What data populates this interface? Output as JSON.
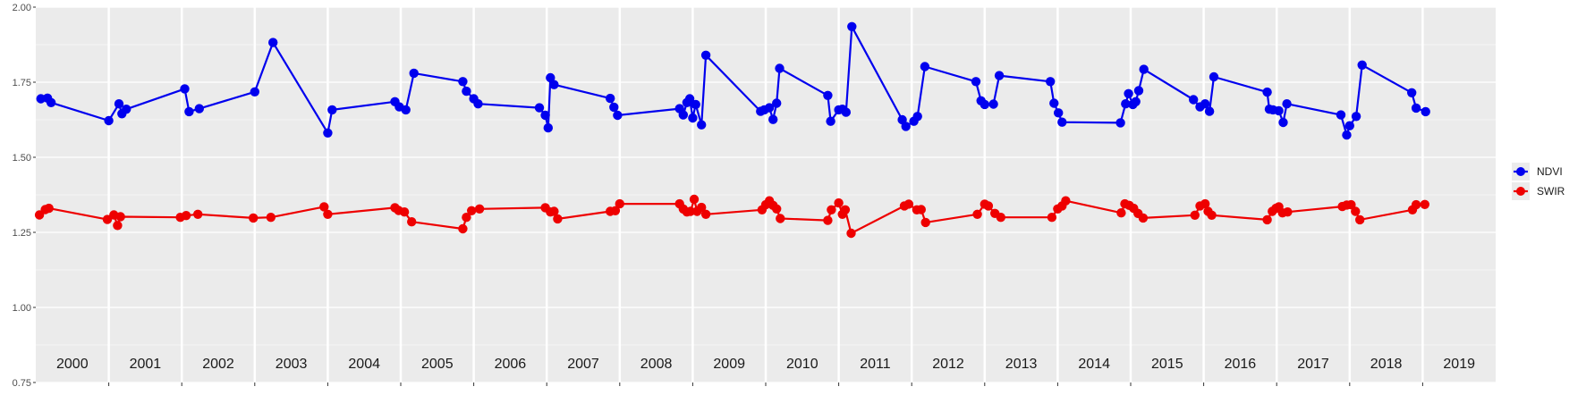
{
  "chart_data": {
    "type": "line",
    "title": "",
    "xlabel": "",
    "ylabel": "",
    "xlim": [
      2000.0,
      2020.0
    ],
    "ylim": [
      0.75,
      2.0
    ],
    "y_ticks": [
      "0.75",
      "1.00",
      "1.25",
      "1.50",
      "1.75",
      "2.00"
    ],
    "y_tick_values": [
      0.75,
      1.0,
      1.25,
      1.5,
      1.75,
      2.0
    ],
    "year_labels": [
      "2000",
      "2001",
      "2002",
      "2003",
      "2004",
      "2005",
      "2006",
      "2007",
      "2008",
      "2009",
      "2010",
      "2011",
      "2012",
      "2013",
      "2014",
      "2015",
      "2016",
      "2017",
      "2018",
      "2019"
    ],
    "grid": true,
    "legend_position": "right",
    "series": [
      {
        "name": "NDVI",
        "color": "#0000ee",
        "points": [
          [
            2000.07,
            1.695
          ],
          [
            2000.16,
            1.697
          ],
          [
            2000.21,
            1.682
          ],
          [
            2001.0,
            1.622
          ],
          [
            2001.14,
            1.678
          ],
          [
            2001.18,
            1.645
          ],
          [
            2001.24,
            1.66
          ],
          [
            2002.04,
            1.728
          ],
          [
            2002.1,
            1.652
          ],
          [
            2002.24,
            1.662
          ],
          [
            2003.0,
            1.718
          ],
          [
            2003.25,
            1.882
          ],
          [
            2004.0,
            1.581
          ],
          [
            2004.06,
            1.658
          ],
          [
            2004.92,
            1.685
          ],
          [
            2004.98,
            1.668
          ],
          [
            2005.07,
            1.658
          ],
          [
            2005.18,
            1.78
          ],
          [
            2005.85,
            1.752
          ],
          [
            2005.9,
            1.72
          ],
          [
            2006.0,
            1.695
          ],
          [
            2006.06,
            1.678
          ],
          [
            2006.9,
            1.665
          ],
          [
            2006.98,
            1.64
          ],
          [
            2007.02,
            1.598
          ],
          [
            2007.05,
            1.765
          ],
          [
            2007.1,
            1.742
          ],
          [
            2007.87,
            1.696
          ],
          [
            2007.92,
            1.667
          ],
          [
            2007.97,
            1.64
          ],
          [
            2008.82,
            1.662
          ],
          [
            2008.87,
            1.641
          ],
          [
            2008.92,
            1.682
          ],
          [
            2008.96,
            1.695
          ],
          [
            2009.0,
            1.631
          ],
          [
            2009.04,
            1.676
          ],
          [
            2009.12,
            1.608
          ],
          [
            2009.18,
            1.84
          ],
          [
            2009.93,
            1.653
          ],
          [
            2009.98,
            1.658
          ],
          [
            2010.05,
            1.665
          ],
          [
            2010.1,
            1.626
          ],
          [
            2010.15,
            1.68
          ],
          [
            2010.19,
            1.796
          ],
          [
            2010.85,
            1.706
          ],
          [
            2010.89,
            1.62
          ],
          [
            2011.0,
            1.658
          ],
          [
            2011.05,
            1.66
          ],
          [
            2011.1,
            1.65
          ],
          [
            2011.18,
            1.935
          ],
          [
            2011.87,
            1.625
          ],
          [
            2011.92,
            1.603
          ],
          [
            2012.03,
            1.62
          ],
          [
            2012.08,
            1.636
          ],
          [
            2012.18,
            1.802
          ],
          [
            2012.88,
            1.752
          ],
          [
            2012.95,
            1.688
          ],
          [
            2013.0,
            1.676
          ],
          [
            2013.12,
            1.677
          ],
          [
            2013.2,
            1.772
          ],
          [
            2013.9,
            1.752
          ],
          [
            2013.95,
            1.68
          ],
          [
            2014.01,
            1.648
          ],
          [
            2014.06,
            1.617
          ],
          [
            2014.86,
            1.615
          ],
          [
            2014.93,
            1.678
          ],
          [
            2014.97,
            1.712
          ],
          [
            2015.03,
            1.676
          ],
          [
            2015.07,
            1.685
          ],
          [
            2015.11,
            1.722
          ],
          [
            2015.18,
            1.793
          ],
          [
            2015.86,
            1.692
          ],
          [
            2015.95,
            1.668
          ],
          [
            2016.02,
            1.678
          ],
          [
            2016.08,
            1.653
          ],
          [
            2016.14,
            1.768
          ],
          [
            2016.87,
            1.717
          ],
          [
            2016.9,
            1.66
          ],
          [
            2016.95,
            1.658
          ],
          [
            2017.03,
            1.655
          ],
          [
            2017.09,
            1.616
          ],
          [
            2017.14,
            1.678
          ],
          [
            2017.88,
            1.641
          ],
          [
            2017.96,
            1.574
          ],
          [
            2018.0,
            1.605
          ],
          [
            2018.09,
            1.636
          ],
          [
            2018.17,
            1.807
          ],
          [
            2018.85,
            1.715
          ],
          [
            2018.91,
            1.664
          ],
          [
            2019.04,
            1.652
          ]
        ]
      },
      {
        "name": "SWIR",
        "color": "#ee0000",
        "points": [
          [
            2000.05,
            1.308
          ],
          [
            2000.13,
            1.326
          ],
          [
            2000.18,
            1.33
          ],
          [
            2000.98,
            1.293
          ],
          [
            2001.07,
            1.308
          ],
          [
            2001.12,
            1.273
          ],
          [
            2001.16,
            1.302
          ],
          [
            2001.98,
            1.3
          ],
          [
            2002.06,
            1.306
          ],
          [
            2002.22,
            1.31
          ],
          [
            2002.98,
            1.298
          ],
          [
            2003.22,
            1.3
          ],
          [
            2003.95,
            1.335
          ],
          [
            2004.0,
            1.31
          ],
          [
            2004.92,
            1.332
          ],
          [
            2004.97,
            1.323
          ],
          [
            2005.05,
            1.318
          ],
          [
            2005.15,
            1.285
          ],
          [
            2005.85,
            1.262
          ],
          [
            2005.9,
            1.3
          ],
          [
            2005.97,
            1.322
          ],
          [
            2006.08,
            1.328
          ],
          [
            2006.98,
            1.332
          ],
          [
            2007.05,
            1.318
          ],
          [
            2007.1,
            1.32
          ],
          [
            2007.15,
            1.295
          ],
          [
            2007.87,
            1.32
          ],
          [
            2007.94,
            1.322
          ],
          [
            2008.0,
            1.345
          ],
          [
            2008.82,
            1.345
          ],
          [
            2008.87,
            1.328
          ],
          [
            2008.92,
            1.318
          ],
          [
            2008.97,
            1.32
          ],
          [
            2009.02,
            1.36
          ],
          [
            2009.06,
            1.32
          ],
          [
            2009.12,
            1.333
          ],
          [
            2009.18,
            1.31
          ],
          [
            2009.95,
            1.325
          ],
          [
            2010.0,
            1.342
          ],
          [
            2010.05,
            1.355
          ],
          [
            2010.1,
            1.34
          ],
          [
            2010.15,
            1.328
          ],
          [
            2010.2,
            1.296
          ],
          [
            2010.85,
            1.29
          ],
          [
            2010.9,
            1.325
          ],
          [
            2011.0,
            1.348
          ],
          [
            2011.05,
            1.31
          ],
          [
            2011.09,
            1.325
          ],
          [
            2011.17,
            1.247
          ],
          [
            2011.9,
            1.338
          ],
          [
            2011.96,
            1.344
          ],
          [
            2012.07,
            1.325
          ],
          [
            2012.13,
            1.326
          ],
          [
            2012.19,
            1.283
          ],
          [
            2012.9,
            1.31
          ],
          [
            2013.0,
            1.344
          ],
          [
            2013.05,
            1.338
          ],
          [
            2013.14,
            1.313
          ],
          [
            2013.22,
            1.3
          ],
          [
            2013.92,
            1.3
          ],
          [
            2014.0,
            1.328
          ],
          [
            2014.06,
            1.338
          ],
          [
            2014.11,
            1.355
          ],
          [
            2014.87,
            1.315
          ],
          [
            2014.92,
            1.345
          ],
          [
            2014.98,
            1.34
          ],
          [
            2015.04,
            1.33
          ],
          [
            2015.1,
            1.313
          ],
          [
            2015.17,
            1.298
          ],
          [
            2015.88,
            1.307
          ],
          [
            2015.95,
            1.338
          ],
          [
            2016.02,
            1.345
          ],
          [
            2016.06,
            1.32
          ],
          [
            2016.11,
            1.307
          ],
          [
            2016.87,
            1.292
          ],
          [
            2016.94,
            1.32
          ],
          [
            2016.99,
            1.33
          ],
          [
            2017.03,
            1.335
          ],
          [
            2017.08,
            1.315
          ],
          [
            2017.15,
            1.318
          ],
          [
            2017.9,
            1.336
          ],
          [
            2017.96,
            1.341
          ],
          [
            2018.02,
            1.342
          ],
          [
            2018.08,
            1.32
          ],
          [
            2018.14,
            1.292
          ],
          [
            2018.86,
            1.325
          ],
          [
            2018.91,
            1.342
          ],
          [
            2019.03,
            1.343
          ]
        ]
      }
    ]
  }
}
